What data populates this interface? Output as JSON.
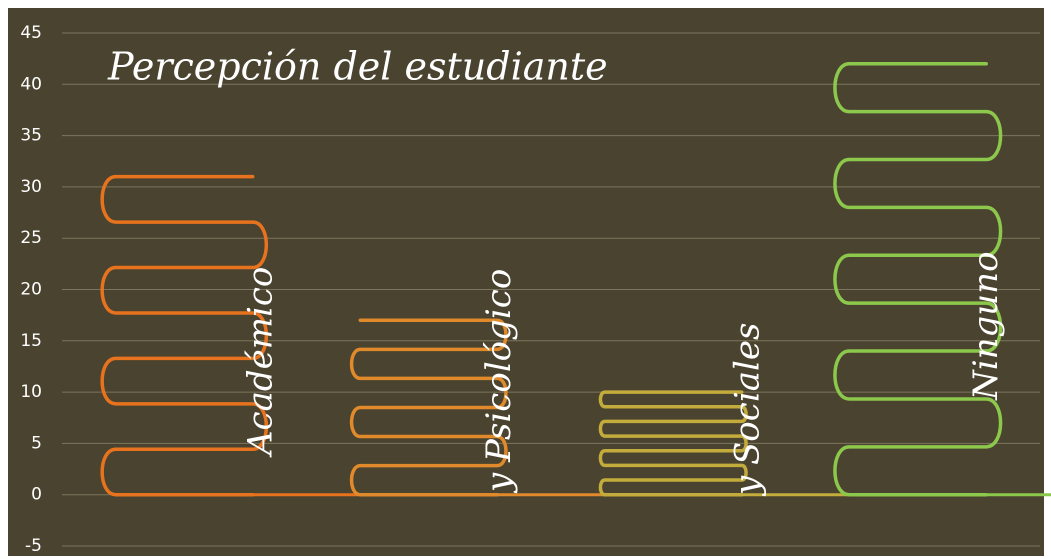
{
  "chart_data": {
    "type": "bar",
    "title": "Percepción del estudiante",
    "categories": [
      "Académico",
      "y Psicológico",
      "y Sociales",
      "Ninguno"
    ],
    "values": [
      31,
      17,
      10,
      42
    ],
    "colors": [
      "#e8731f",
      "#e08a2c",
      "#c3ac3c",
      "#8cc84b"
    ],
    "ylim": [
      -5,
      45
    ],
    "yticks": [
      -5,
      0,
      5,
      10,
      15,
      20,
      25,
      30,
      35,
      40,
      45
    ],
    "grid": true
  }
}
